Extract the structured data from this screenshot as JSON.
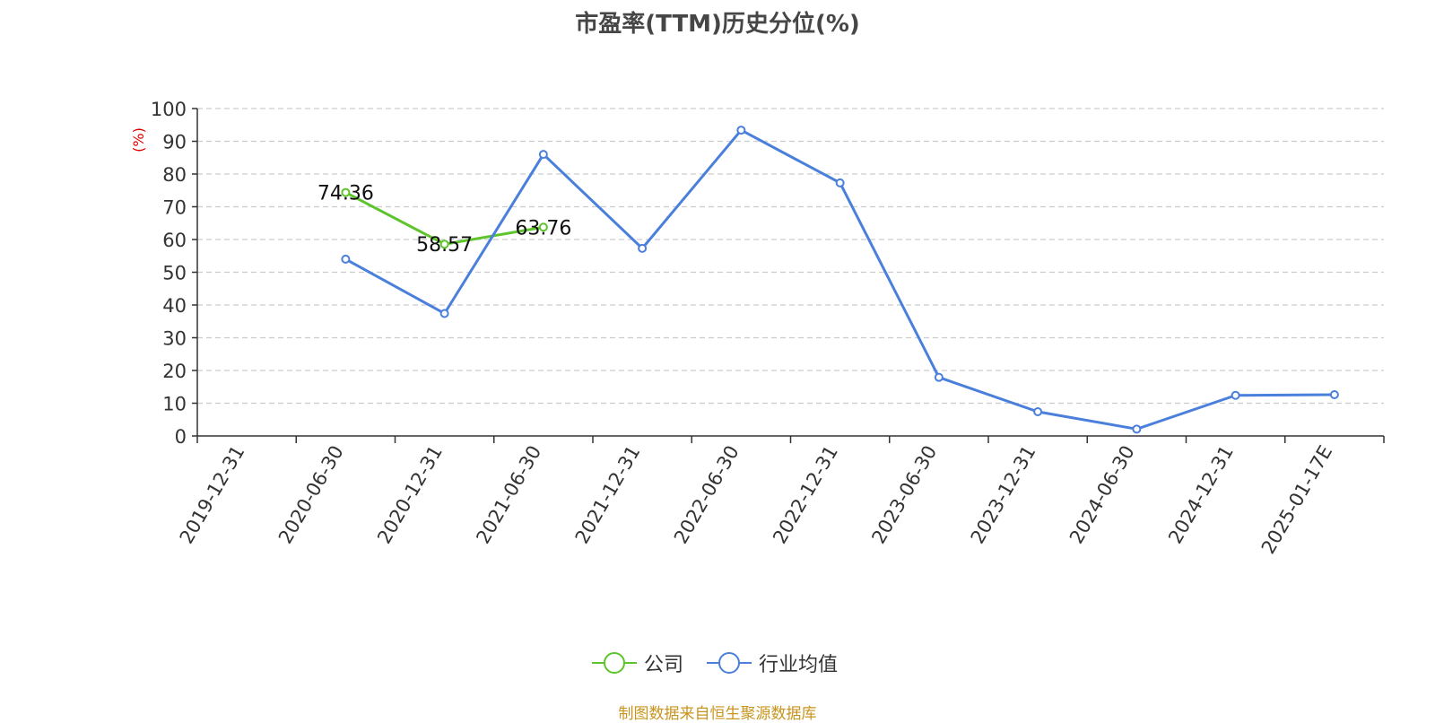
{
  "chart_data": {
    "type": "line",
    "title": "市盈率(TTM)历史分位(%)",
    "ylabel": "(%)",
    "ylim": [
      0,
      100
    ],
    "y_ticks": [
      0,
      10,
      20,
      30,
      40,
      50,
      60,
      70,
      80,
      90,
      100
    ],
    "grid": true,
    "legend_position": "bottom",
    "categories": [
      "2019-12-31",
      "2020-06-30",
      "2020-12-31",
      "2021-06-30",
      "2021-12-31",
      "2022-06-30",
      "2022-12-31",
      "2023-06-30",
      "2023-12-31",
      "2024-06-30",
      "2024-12-31",
      "2025-01-17E"
    ],
    "series": [
      {
        "name": "公司",
        "color": "#5ec42b",
        "values": [
          null,
          74.36,
          58.57,
          63.76,
          null,
          null,
          null,
          null,
          null,
          null,
          null,
          null
        ],
        "labels": [
          null,
          "74.36",
          "58.57",
          "63.76",
          null,
          null,
          null,
          null,
          null,
          null,
          null,
          null
        ]
      },
      {
        "name": "行业均值",
        "color": "#4a7fdc",
        "values": [
          null,
          54.0,
          37.4,
          86.0,
          57.3,
          93.4,
          77.3,
          17.9,
          7.4,
          2.1,
          12.4,
          12.6
        ],
        "labels": [
          null,
          null,
          null,
          null,
          null,
          null,
          null,
          null,
          null,
          null,
          null,
          null
        ]
      }
    ]
  },
  "source_text": "制图数据来自恒生聚源数据库"
}
